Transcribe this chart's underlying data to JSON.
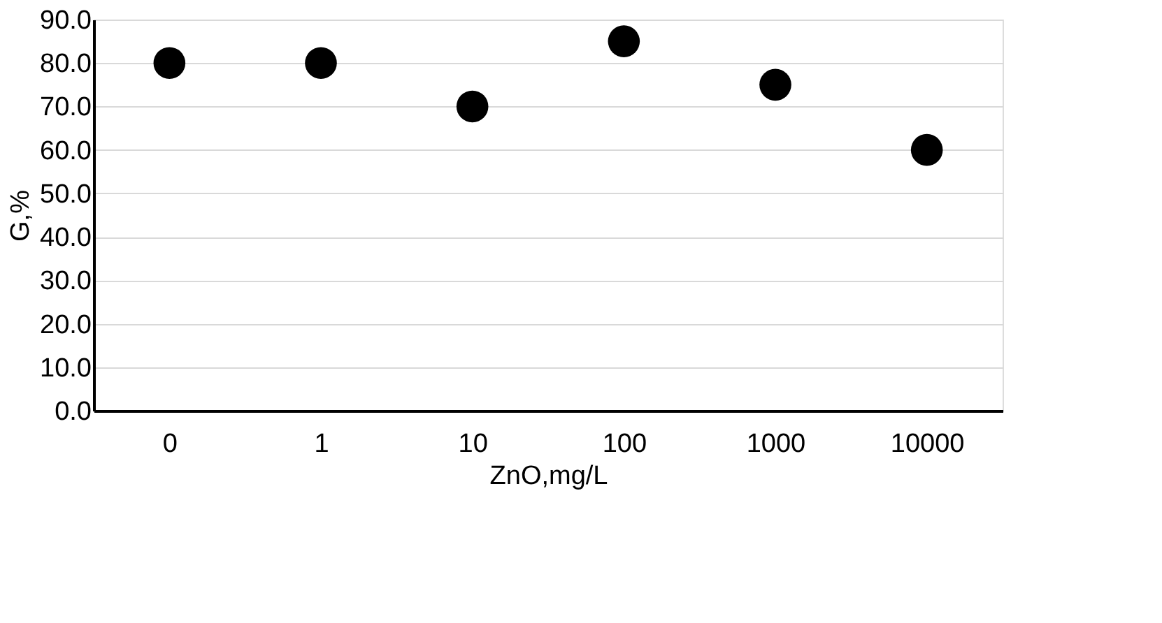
{
  "chart_data": {
    "type": "scatter",
    "xlabel": "ZnO,mg/L",
    "ylabel": "G,%",
    "categories": [
      "0",
      "1",
      "10",
      "100",
      "1000",
      "10000"
    ],
    "series": [
      {
        "color": "#000000",
        "values": [
          80,
          80,
          70,
          85,
          75,
          60
        ]
      }
    ],
    "ylim": [
      0,
      90
    ],
    "yticks": [
      {
        "value": 0,
        "label": "0.0"
      },
      {
        "value": 10,
        "label": "10.0"
      },
      {
        "value": 20,
        "label": "20.0"
      },
      {
        "value": 30,
        "label": "30.0"
      },
      {
        "value": 40,
        "label": "40.0"
      },
      {
        "value": 50,
        "label": "50.0"
      },
      {
        "value": 60,
        "label": "60.0"
      },
      {
        "value": 70,
        "label": "70.0"
      },
      {
        "value": 80,
        "label": "80.0"
      },
      {
        "value": 90,
        "label": "90.0"
      }
    ],
    "grid": "y",
    "marker": "circle",
    "legend": false
  }
}
